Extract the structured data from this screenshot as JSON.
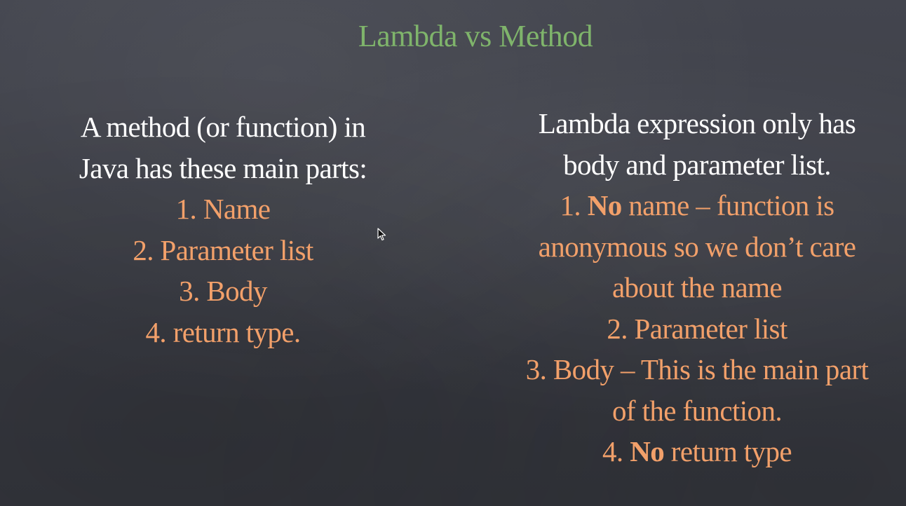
{
  "colors": {
    "title": "#7fb46b",
    "text": "#ffffff",
    "accent": "#f2a06a"
  },
  "slide": {
    "title": "Lambda vs Method",
    "left": {
      "intro": [
        "A method (or function) in",
        "Java has these main parts:"
      ],
      "items": [
        "1. Name",
        "2. Parameter list",
        "3. Body",
        "4. return type."
      ]
    },
    "right": {
      "intro": [
        "Lambda expression only has",
        "body and parameter list."
      ],
      "item1": {
        "prefix": "1. ",
        "strong": "No",
        "rest": " name – function is"
      },
      "item1_cont": [
        "anonymous so we don’t care",
        "about the name"
      ],
      "item2": "2. Parameter list",
      "item3": "3. Body – This is the main part",
      "item3_cont": "of the function.",
      "item4": {
        "prefix": "4. ",
        "strong": "No",
        "rest": " return type"
      }
    }
  },
  "cursor_icon": "mouse-pointer-icon"
}
